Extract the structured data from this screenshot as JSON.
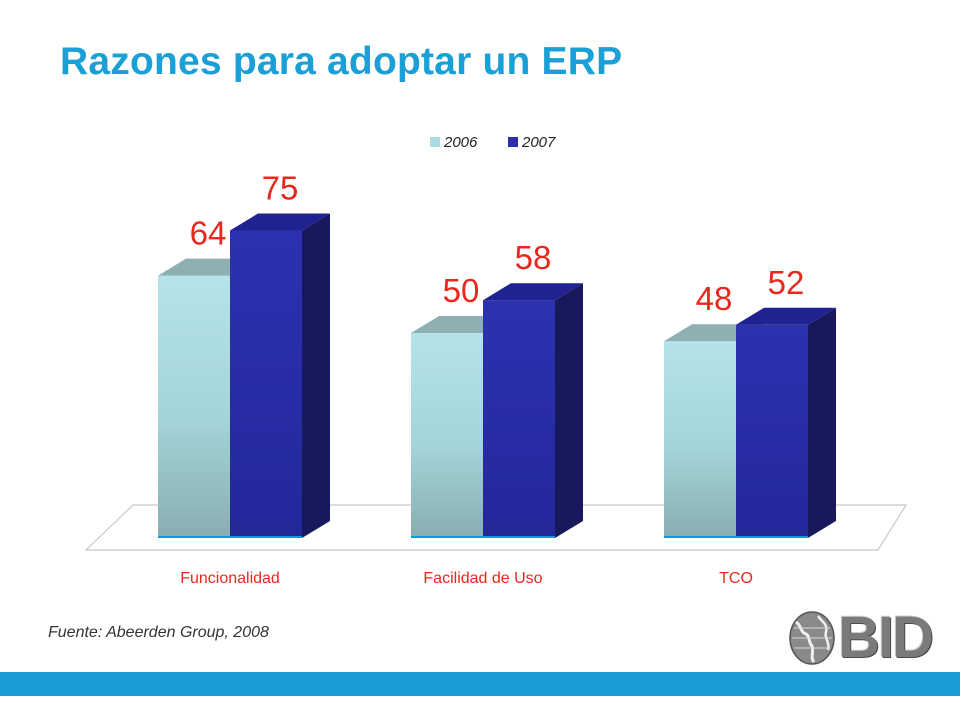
{
  "slide": {
    "title": "Razones para adoptar un ERP",
    "source": "Fuente: Abeerden Group, 2008",
    "logo_text": "BID"
  },
  "colors": {
    "title": "#1aa0d6",
    "label": "#e8281e",
    "category": "#e8281e",
    "series_2006": "#a8dde3",
    "series_2007": "#2b2ea8",
    "bar_bottom": "#0e9ad6"
  },
  "chart_data": {
    "type": "bar",
    "title": "",
    "xlabel": "",
    "ylabel": "",
    "categories": [
      "Funcionalidad",
      "Facilidad de Uso",
      "TCO"
    ],
    "series": [
      {
        "name": "2006",
        "values": [
          64,
          50,
          48
        ]
      },
      {
        "name": "2007",
        "values": [
          75,
          58,
          52
        ]
      }
    ],
    "ylim": [
      0,
      100
    ],
    "grid": false,
    "legend": "top-center",
    "style": "3d-column"
  }
}
